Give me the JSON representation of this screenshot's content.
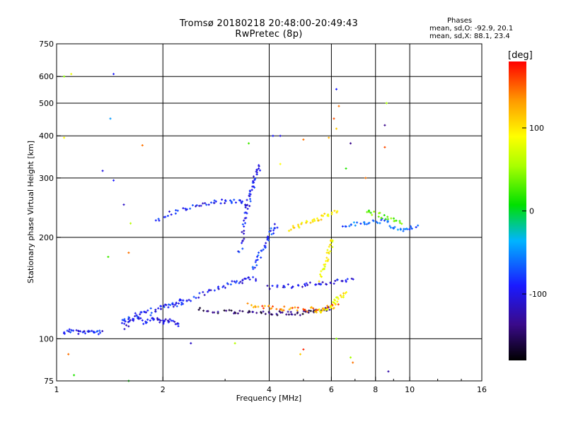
{
  "title_line1": "Tromsø 20180218 20:48:00-20:49:43",
  "title_line2": "RwPretec (8p)",
  "phases_info": {
    "heading": "Phases",
    "line_o": "mean, sd,O: -92.9, 20.1",
    "line_x": "mean, sd,X: 88.1, 23.4"
  },
  "colorbar": {
    "unit_label": "[deg]",
    "ticks": [
      {
        "value": 100,
        "label": "100"
      },
      {
        "value": 0,
        "label": "0"
      },
      {
        "value": -100,
        "label": "-100"
      }
    ],
    "range": [
      -180,
      180
    ]
  },
  "chart_data": {
    "type": "scatter",
    "xlabel": "Frequency [MHz]",
    "ylabel": "Stationary phase Virtual Height [km]",
    "xscale": "log",
    "yscale": "log",
    "xlim": [
      1,
      16
    ],
    "ylim": [
      75,
      750
    ],
    "xticks": [
      {
        "value": 1,
        "label": "1"
      },
      {
        "value": 2,
        "label": "2"
      },
      {
        "value": 4,
        "label": "4"
      },
      {
        "value": 6,
        "label": "6"
      },
      {
        "value": 8,
        "label": "8"
      },
      {
        "value": 10,
        "label": "10"
      },
      {
        "value": 16,
        "label": "16"
      }
    ],
    "yticks": [
      {
        "value": 75,
        "label": "75"
      },
      {
        "value": 100,
        "label": "100"
      },
      {
        "value": 200,
        "label": "200"
      },
      {
        "value": 300,
        "label": "300"
      },
      {
        "value": 400,
        "label": "400"
      },
      {
        "value": 500,
        "label": "500"
      },
      {
        "value": 600,
        "label": "600"
      },
      {
        "value": 750,
        "label": "750"
      }
    ],
    "grid_x": [
      2,
      4,
      6,
      8,
      10
    ],
    "grid_y": [
      100,
      200,
      300,
      400,
      500,
      600
    ],
    "color_by": "phase (deg)",
    "traces": [
      {
        "f": [
          1.05,
          1.1,
          1.15,
          1.2,
          1.25,
          1.3,
          1.35
        ],
        "h": [
          104,
          106,
          105,
          104,
          106,
          104,
          105
        ],
        "phase": -100
      },
      {
        "f": [
          1.55,
          1.62,
          1.7,
          1.78,
          1.85,
          1.92,
          2.0,
          2.07,
          2.15,
          2.25
        ],
        "h": [
          108,
          112,
          115,
          112,
          116,
          114,
          112,
          113,
          112,
          110
        ],
        "phase": -105
      },
      {
        "f": [
          1.52,
          1.6,
          1.7,
          1.8,
          1.9,
          2.0,
          2.1,
          2.2,
          2.3
        ],
        "h": [
          112,
          115,
          118,
          120,
          122,
          124,
          126,
          128,
          130
        ],
        "phase": -95
      },
      {
        "f": [
          2.1,
          2.3,
          2.5,
          2.7,
          2.9,
          3.1,
          3.3,
          3.5,
          3.7
        ],
        "h": [
          125,
          128,
          133,
          138,
          142,
          146,
          148,
          150,
          151
        ],
        "phase": -100
      },
      {
        "f": [
          2.5,
          2.8,
          3.1,
          3.4,
          3.7,
          4.0,
          4.3,
          4.6,
          4.9,
          5.2,
          5.5,
          5.8,
          6.0
        ],
        "h": [
          122,
          121,
          120,
          120,
          119,
          119,
          119,
          119,
          119,
          120,
          121,
          122,
          124
        ],
        "phase": -150
      },
      {
        "f": [
          3.5,
          3.8,
          4.1,
          4.4,
          4.8,
          5.2,
          5.6,
          6.0,
          6.3
        ],
        "h": [
          126,
          125,
          124,
          123,
          122,
          122,
          123,
          124,
          126
        ],
        "phase": 145
      },
      {
        "f": [
          5.4,
          5.7,
          6.0,
          6.2,
          6.4,
          6.6
        ],
        "h": [
          120,
          122,
          125,
          130,
          134,
          138
        ],
        "phase": 100
      },
      {
        "f": [
          4.0,
          4.4,
          4.8,
          5.2,
          5.6,
          6.0,
          6.5,
          7.0
        ],
        "h": [
          142,
          143,
          144,
          145,
          146,
          147,
          148,
          149
        ],
        "phase": -110
      },
      {
        "f": [
          3.3,
          3.35,
          3.4,
          3.45,
          3.5,
          3.55,
          3.6,
          3.65,
          3.7,
          3.75
        ],
        "h": [
          180,
          200,
          220,
          240,
          255,
          270,
          285,
          300,
          315,
          330
        ],
        "phase": -100
      },
      {
        "f": [
          3.6,
          3.7,
          3.8,
          3.9,
          4.0,
          4.1,
          4.2
        ],
        "h": [
          160,
          170,
          180,
          190,
          200,
          210,
          220
        ],
        "phase": -90
      },
      {
        "f": [
          1.9,
          2.1,
          2.3,
          2.5,
          2.7,
          2.9,
          3.1,
          3.3,
          3.5
        ],
        "h": [
          225,
          235,
          242,
          248,
          252,
          255,
          256,
          255,
          252
        ],
        "phase": -100
      },
      {
        "f": [
          4.5,
          4.8,
          5.1,
          5.4,
          5.7,
          6.0,
          6.3
        ],
        "h": [
          210,
          215,
          220,
          225,
          230,
          235,
          240
        ],
        "phase": 105
      },
      {
        "f": [
          5.6,
          5.7,
          5.8,
          5.9,
          6.0,
          6.1
        ],
        "h": [
          150,
          160,
          170,
          180,
          190,
          200
        ],
        "phase": 95
      },
      {
        "f": [
          6.5,
          7.0,
          7.5,
          8.0,
          8.5,
          9.0,
          9.5,
          10.0,
          10.5
        ],
        "h": [
          215,
          220,
          218,
          222,
          225,
          215,
          210,
          212,
          220
        ],
        "phase": -70
      },
      {
        "f": [
          7.5,
          8.0,
          8.5,
          9.0,
          9.5
        ],
        "h": [
          240,
          235,
          230,
          225,
          220
        ],
        "phase": 30
      }
    ],
    "scatter": [
      {
        "f": 1.1,
        "h": 610,
        "phase": 90
      },
      {
        "f": 1.05,
        "h": 600,
        "phase": 40
      },
      {
        "f": 1.45,
        "h": 610,
        "phase": -100
      },
      {
        "f": 1.42,
        "h": 450,
        "phase": -50
      },
      {
        "f": 1.05,
        "h": 395,
        "phase": 100
      },
      {
        "f": 1.75,
        "h": 375,
        "phase": 150
      },
      {
        "f": 1.35,
        "h": 315,
        "phase": -110
      },
      {
        "f": 1.45,
        "h": 295,
        "phase": -100
      },
      {
        "f": 1.55,
        "h": 250,
        "phase": -120
      },
      {
        "f": 1.62,
        "h": 220,
        "phase": 60
      },
      {
        "f": 1.4,
        "h": 175,
        "phase": 20
      },
      {
        "f": 1.6,
        "h": 180,
        "phase": 150
      },
      {
        "f": 1.08,
        "h": 90,
        "phase": 150
      },
      {
        "f": 1.12,
        "h": 78,
        "phase": 10
      },
      {
        "f": 1.6,
        "h": 75,
        "phase": 0
      },
      {
        "f": 2.4,
        "h": 97,
        "phase": -120
      },
      {
        "f": 3.2,
        "h": 97,
        "phase": 60
      },
      {
        "f": 3.5,
        "h": 380,
        "phase": 20
      },
      {
        "f": 4.1,
        "h": 400,
        "phase": -100
      },
      {
        "f": 4.3,
        "h": 400,
        "phase": -110
      },
      {
        "f": 6.2,
        "h": 550,
        "phase": -100
      },
      {
        "f": 6.3,
        "h": 490,
        "phase": 150
      },
      {
        "f": 6.1,
        "h": 450,
        "phase": 160
      },
      {
        "f": 6.2,
        "h": 420,
        "phase": 120
      },
      {
        "f": 5.9,
        "h": 395,
        "phase": 130
      },
      {
        "f": 6.8,
        "h": 380,
        "phase": -140
      },
      {
        "f": 8.6,
        "h": 500,
        "phase": 50
      },
      {
        "f": 8.5,
        "h": 430,
        "phase": -140
      },
      {
        "f": 8.5,
        "h": 370,
        "phase": 160
      },
      {
        "f": 6.6,
        "h": 320,
        "phase": 10
      },
      {
        "f": 7.5,
        "h": 300,
        "phase": 150
      },
      {
        "f": 5.0,
        "h": 390,
        "phase": 150
      },
      {
        "f": 4.3,
        "h": 330,
        "phase": 100
      },
      {
        "f": 5.0,
        "h": 93,
        "phase": 170
      },
      {
        "f": 4.9,
        "h": 90,
        "phase": 120
      },
      {
        "f": 6.8,
        "h": 88,
        "phase": 50
      },
      {
        "f": 6.9,
        "h": 85,
        "phase": 150
      },
      {
        "f": 8.7,
        "h": 80,
        "phase": -130
      },
      {
        "f": 6.2,
        "h": 100,
        "phase": 40
      }
    ]
  }
}
